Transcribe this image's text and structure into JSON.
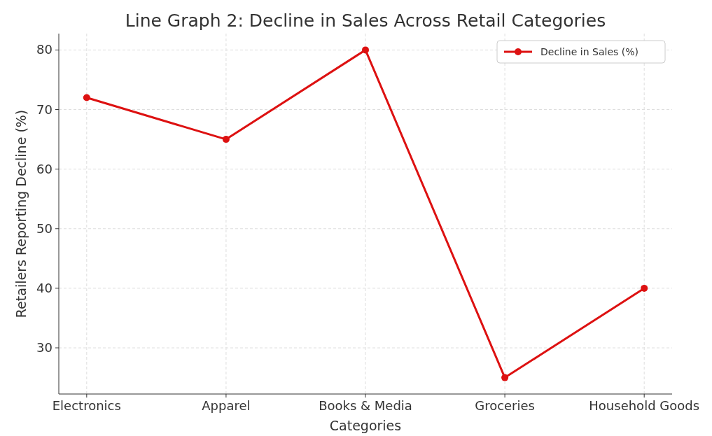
{
  "chart_data": {
    "type": "line",
    "title": "Line Graph 2: Decline in Sales Across Retail Categories",
    "xlabel": "Categories",
    "ylabel": "Retailers Reporting Decline (%)",
    "categories": [
      "Electronics",
      "Apparel",
      "Books & Media",
      "Groceries",
      "Household Goods"
    ],
    "series": [
      {
        "name": "Decline in Sales (%)",
        "color": "#dd1111",
        "values": [
          72,
          65,
          80,
          25,
          40
        ]
      }
    ],
    "ylim": [
      22.25,
      82.75
    ],
    "yticks": [
      30,
      40,
      50,
      60,
      70,
      80
    ],
    "grid": true,
    "legend": "top right",
    "marker": "circle",
    "line_style": "solid"
  }
}
